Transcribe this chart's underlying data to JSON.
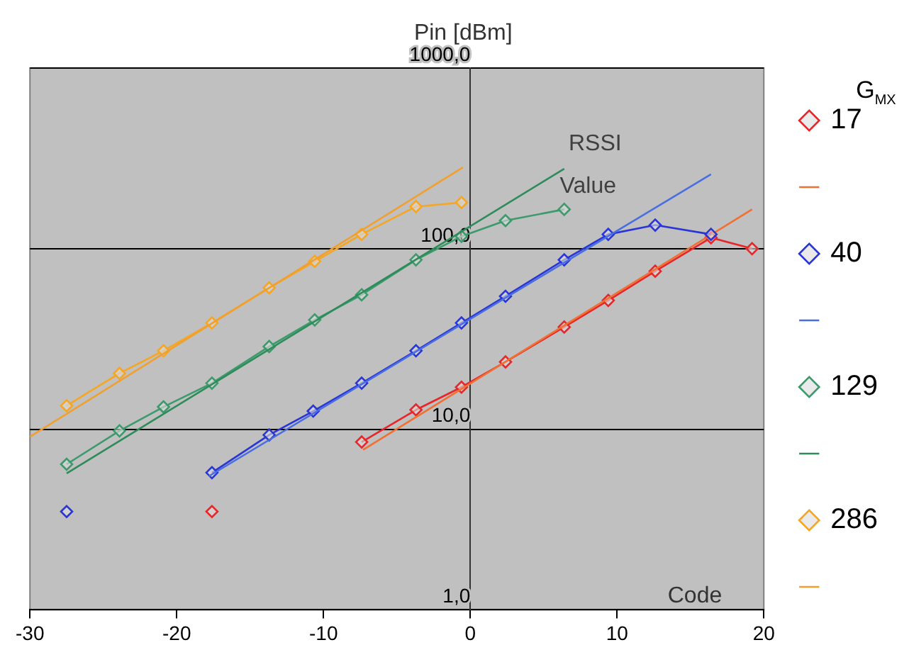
{
  "chart_data": {
    "type": "line",
    "ylabel": "Pin [dBm]",
    "xlabel": "Code",
    "legend_title": "G$_{MX}$",
    "annotations": [
      "RSSI Value"
    ],
    "log": "y",
    "xlim": [
      -30,
      20
    ],
    "xticks": [
      -30,
      -20,
      -10,
      0,
      10,
      20
    ],
    "ylim": [
      1,
      1000
    ],
    "yticks": [
      {
        "value": 1,
        "label": "1,0"
      },
      {
        "value": 10,
        "label": "10,0"
      },
      {
        "value": 100,
        "label": "100,0"
      },
      {
        "value": 1000,
        "label": "1000,0"
      }
    ],
    "grid": "y",
    "legend": "right",
    "marker": "diamond",
    "line_style": "solid",
    "series": [
      {
        "name": "17",
        "color": "#e8262a",
        "x": [
          -7.4,
          -3.7,
          -0.6,
          2.4,
          6.4,
          9.4,
          12.6,
          16.4,
          19.2
        ],
        "values": [
          8.5,
          12.8,
          17.1,
          23.6,
          36.8,
          51.7,
          75,
          115,
          100
        ]
      },
      {
        "color": "#f07033",
        "marker": "none",
        "x": [
          -7.3,
          19.2
        ],
        "values": [
          7.7,
          165
        ]
      },
      {
        "name": "40",
        "color": "#2a35d6",
        "x": [
          -17.6,
          -13.7,
          -10.7,
          -7.4,
          -3.7,
          -0.6,
          2.4,
          6.4,
          9.4,
          12.6,
          16.4
        ],
        "values": [
          5.75,
          9.3,
          12.6,
          18,
          27.2,
          38.8,
          54.5,
          86.7,
          120,
          135,
          120
        ]
      },
      {
        "color": "#4a6ee0",
        "marker": "none",
        "x": [
          -17.8,
          16.4
        ],
        "values": [
          5.5,
          258
        ]
      },
      {
        "name": "129",
        "color": "#3c9a6c",
        "x": [
          -27.5,
          -23.9,
          -20.9,
          -17.6,
          -13.7,
          -10.6,
          -7.4,
          -3.7,
          -0.6,
          2.4,
          6.4
        ],
        "values": [
          6.4,
          9.8,
          13.3,
          18,
          28.7,
          40.3,
          55.5,
          86.7,
          117,
          143,
          165
        ]
      },
      {
        "color": "#2e8b5a",
        "marker": "none",
        "x": [
          -27.5,
          6.4
        ],
        "values": [
          5.7,
          277
        ]
      },
      {
        "name": "286",
        "color": "#f5a623",
        "x": [
          -27.5,
          -23.9,
          -20.9,
          -17.6,
          -13.7,
          -10.6,
          -7.4,
          -3.7,
          -0.6
        ],
        "values": [
          13.5,
          20.4,
          27.2,
          38.8,
          60.7,
          85,
          120,
          171,
          180
        ]
      },
      {
        "color": "#f0a030",
        "marker": "none",
        "x": [
          -30,
          -0.5
        ],
        "values": [
          9.1,
          282
        ]
      },
      {
        "type": "scatter",
        "color": "#e8262a",
        "x": [
          -17.6
        ],
        "values": [
          3.5
        ]
      },
      {
        "type": "scatter",
        "color": "#2a35d6",
        "x": [
          -27.5
        ],
        "values": [
          3.5
        ]
      }
    ]
  }
}
